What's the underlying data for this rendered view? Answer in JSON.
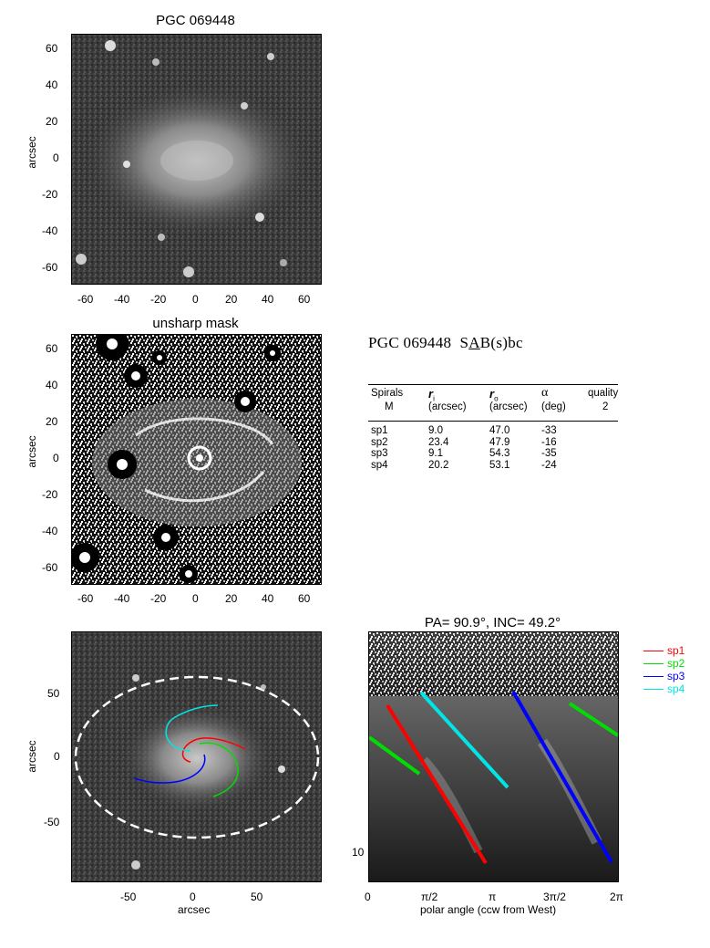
{
  "panels": {
    "image": {
      "title": "PGC 069448",
      "ylabel": "arcsec",
      "yticks": [
        "60",
        "40",
        "20",
        "0",
        "-20",
        "-40",
        "-60"
      ],
      "xticks": [
        "-60",
        "-40",
        "-20",
        "0",
        "20",
        "40",
        "60"
      ]
    },
    "unsharp": {
      "title": "unsharp mask",
      "ylabel": "arcsec",
      "yticks": [
        "60",
        "40",
        "20",
        "0",
        "-20",
        "-40",
        "-60"
      ],
      "xticks": [
        "-60",
        "-40",
        "-20",
        "0",
        "20",
        "40",
        "60"
      ]
    },
    "overlay": {
      "ylabel": "arcsec",
      "xlabel": "arcsec",
      "yticks": [
        "50",
        "0",
        "-50"
      ],
      "xticks": [
        "-50",
        "0",
        "50"
      ]
    },
    "polar": {
      "title": "PA=  90.9°, INC=  49.2°",
      "xlabel": "polar angle (ccw from West)",
      "xticks": [
        "0",
        "π/2",
        "π",
        "3π/2",
        "2π"
      ],
      "ytick": "10"
    }
  },
  "heading": {
    "name": "PGC 069448",
    "type_prefix": "S",
    "type_bar": "A",
    "type_suffix": "B(s)bc"
  },
  "table": {
    "headers": {
      "spirals": "Spirals",
      "spirals_sub": "M",
      "ri": "r",
      "ri_idx": "i",
      "ri_sub": "(arcsec)",
      "ro": "r",
      "ro_idx": "o",
      "ro_sub": "(arcsec)",
      "alpha": "α",
      "alpha_sub": "(deg)",
      "quality": "quality",
      "quality_sub": "2"
    },
    "rows": [
      {
        "name": "sp1",
        "ri": "9.0",
        "ro": "47.0",
        "alpha": "-33"
      },
      {
        "name": "sp2",
        "ri": "23.4",
        "ro": "47.9",
        "alpha": "-16"
      },
      {
        "name": "sp3",
        "ri": "9.1",
        "ro": "54.3",
        "alpha": "-35"
      },
      {
        "name": "sp4",
        "ri": "20.2",
        "ro": "53.1",
        "alpha": "-24"
      }
    ]
  },
  "legend": [
    {
      "label": "sp1",
      "color": "#ff0000"
    },
    {
      "label": "sp2",
      "color": "#00dd00"
    },
    {
      "label": "sp3",
      "color": "#0000ff"
    },
    {
      "label": "sp4",
      "color": "#00e5e5"
    }
  ]
}
